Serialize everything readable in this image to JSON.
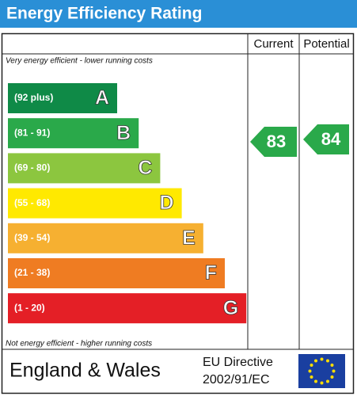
{
  "header": {
    "title": "Energy Efficiency Rating"
  },
  "columns": {
    "current": "Current",
    "potential": "Potential"
  },
  "top_note": "Very energy efficient - lower running costs",
  "bottom_note": "Not energy efficient - higher running costs",
  "bands": [
    {
      "range": "(92 plus)",
      "letter": "A",
      "color": "#0f8a47"
    },
    {
      "range": "(81 - 91)",
      "letter": "B",
      "color": "#2aa94a"
    },
    {
      "range": "(69 - 80)",
      "letter": "C",
      "color": "#8cc63f"
    },
    {
      "range": "(55 - 68)",
      "letter": "D",
      "color": "#ffe900"
    },
    {
      "range": "(39 - 54)",
      "letter": "E",
      "color": "#f6b031"
    },
    {
      "range": "(21 - 38)",
      "letter": "F",
      "color": "#ef7c22"
    },
    {
      "range": "(1 - 20)",
      "letter": "G",
      "color": "#e41f26"
    }
  ],
  "ratings": {
    "current": "83",
    "potential": "84",
    "color": "#2aa94a"
  },
  "footer": {
    "region": "England & Wales",
    "directive_line1": "EU Directive",
    "directive_line2": "2002/91/EC"
  }
}
